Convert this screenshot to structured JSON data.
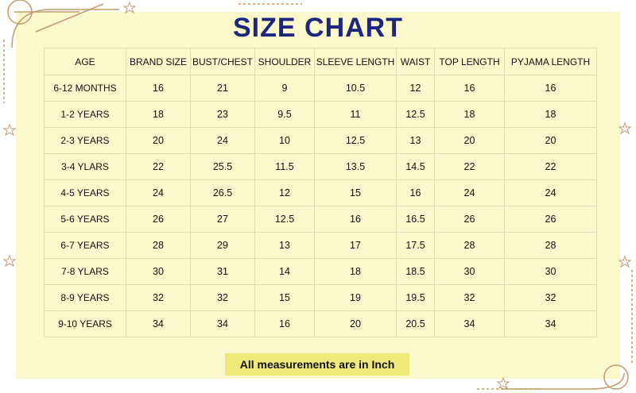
{
  "title": "SIZE CHART",
  "table": {
    "headers": [
      "AGE",
      "BRAND SIZE",
      "BUST/CHEST",
      "SHOULDER",
      "SLEEVE LENGTH",
      "WAIST",
      "TOP LENGTH",
      "PYJAMA LENGTH"
    ],
    "rows": [
      [
        "6-12 MONTHS",
        "16",
        "21",
        "9",
        "10.5",
        "12",
        "16",
        "16"
      ],
      [
        "1-2 YEARS",
        "18",
        "23",
        "9.5",
        "11",
        "12.5",
        "18",
        "18"
      ],
      [
        "2-3 YEARS",
        "20",
        "24",
        "10",
        "12.5",
        "13",
        "20",
        "20"
      ],
      [
        "3-4 YLARS",
        "22",
        "25.5",
        "11.5",
        "13.5",
        "14.5",
        "22",
        "22"
      ],
      [
        "4-5 YEARS",
        "24",
        "26.5",
        "12",
        "15",
        "16",
        "24",
        "24"
      ],
      [
        "5-6 YEARS",
        "26",
        "27",
        "12.5",
        "16",
        "16.5",
        "26",
        "26"
      ],
      [
        "6-7 YEARS",
        "28",
        "29",
        "13",
        "17",
        "17.5",
        "28",
        "28"
      ],
      [
        "7-8 YLARS",
        "30",
        "31",
        "14",
        "18",
        "18.5",
        "30",
        "30"
      ],
      [
        "8-9 YEARS",
        "32",
        "32",
        "15",
        "19",
        "19.5",
        "32",
        "32"
      ],
      [
        "9-10 YEARS",
        "34",
        "34",
        "16",
        "20",
        "20.5",
        "34",
        "34"
      ]
    ]
  },
  "note": "All measurements are in Inch",
  "colors": {
    "background": "#fbf8cc",
    "title": "#1c2580",
    "note_highlight": "#efe97a",
    "ornament": "#c49a6c"
  }
}
